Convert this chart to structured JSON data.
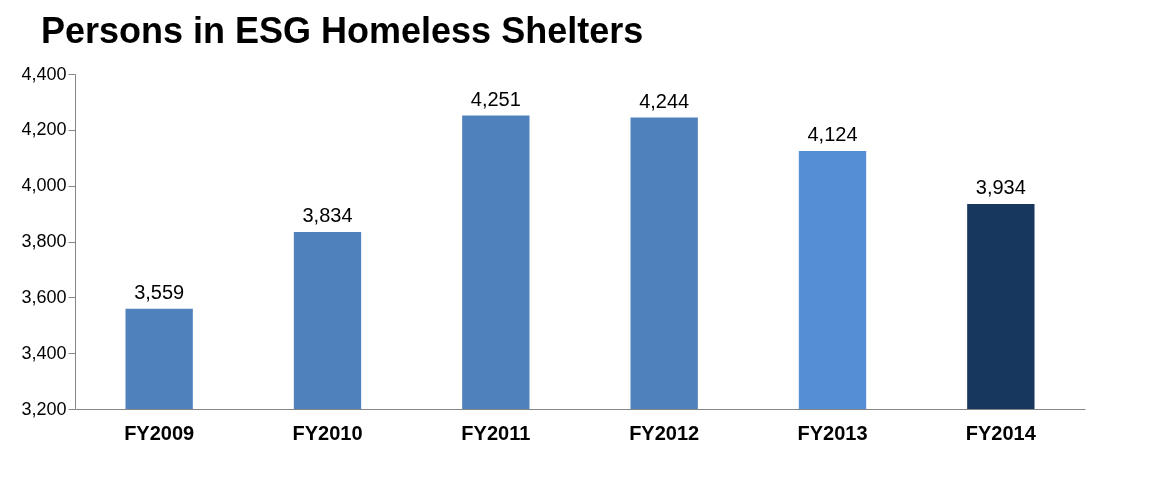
{
  "chart_data": {
    "type": "bar",
    "title": "Persons in ESG Homeless Shelters",
    "categories": [
      "FY2009",
      "FY2010",
      "FY2011",
      "FY2012",
      "FY2013",
      "FY2014"
    ],
    "values": [
      3559,
      3834,
      4251,
      4244,
      4124,
      3934
    ],
    "value_labels": [
      "3,559",
      "3,834",
      "4,251",
      "4,244",
      "4,124",
      "3,934"
    ],
    "colors": [
      "#4f81bd",
      "#4f81bd",
      "#4f81bd",
      "#4f81bd",
      "#558ed5",
      "#17375e"
    ],
    "ylim": [
      3200,
      4400
    ],
    "yticks": [
      {
        "value": 3200,
        "label": "3,200"
      },
      {
        "value": 3400,
        "label": "3,400"
      },
      {
        "value": 3600,
        "label": "3,600"
      },
      {
        "value": 3800,
        "label": "3,800"
      },
      {
        "value": 4000,
        "label": "4,000"
      },
      {
        "value": 4200,
        "label": "4,200"
      },
      {
        "value": 4400,
        "label": "4,400"
      }
    ],
    "grid": false
  }
}
